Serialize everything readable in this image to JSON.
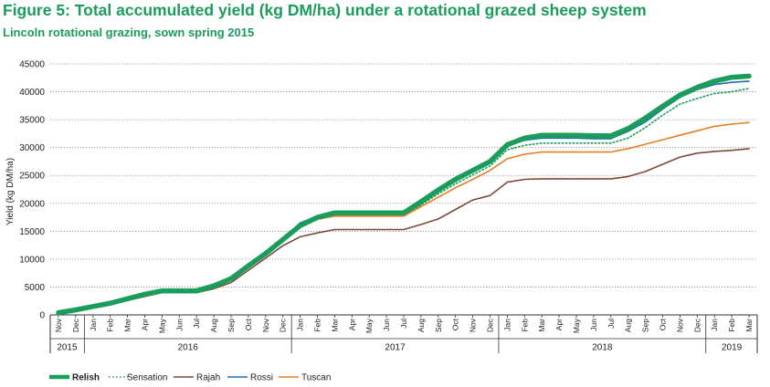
{
  "title": "Figure 5: Total accumulated yield (kg DM/ha) under a rotational grazed sheep system",
  "subtitle": "Lincoln rotational grazing, sown spring 2015",
  "chart_data": {
    "type": "line",
    "title": "Figure 5: Total accumulated yield (kg DM/ha) under a rotational grazed sheep system",
    "subtitle": "Lincoln rotational grazing, sown spring 2015",
    "ylabel": "Yield (kg DM/ha)",
    "xlabel": "",
    "ylim": [
      0,
      45000
    ],
    "yticks": [
      0,
      5000,
      10000,
      15000,
      20000,
      25000,
      30000,
      35000,
      40000,
      45000
    ],
    "grid": "horizontal dotted",
    "legend_position": "bottom-left",
    "x": [
      "Nov 2015",
      "Dec 2015",
      "Jan 2016",
      "Feb 2016",
      "Mar 2016",
      "Apr 2016",
      "May 2016",
      "Jun 2016",
      "Jul 2016",
      "Aug 2016",
      "Sep 2016",
      "Oct 2016",
      "Nov 2016",
      "Dec 2016",
      "Jan 2017",
      "Feb 2017",
      "Mar 2017",
      "Apr 2017",
      "May 2017",
      "Jun 2017",
      "Jul 2017",
      "Aug 2017",
      "Sep 2017",
      "Oct 2017",
      "Nov 2017",
      "Dec 2017",
      "Jan 2018",
      "Feb 2018",
      "Mar 2018",
      "Apr 2018",
      "May 2018",
      "Jun 2018",
      "Jul 2018",
      "Aug 2018",
      "Sep 2018",
      "Oct 2018",
      "Nov 2018",
      "Dec 2018",
      "Jan 2019",
      "Feb 2019",
      "Mar 2019"
    ],
    "month_labels": [
      "Nov",
      "Dec",
      "Jan",
      "Feb",
      "Mar",
      "Apr",
      "May",
      "Jun",
      "Jul",
      "Aug",
      "Sep",
      "Oct",
      "Nov",
      "Dec",
      "Jan",
      "Feb",
      "Mar",
      "Apr",
      "May",
      "Jun",
      "Jul",
      "Aug",
      "Sep",
      "Oct",
      "Nov",
      "Dec",
      "Jan",
      "Feb",
      "Mar",
      "Apr",
      "May",
      "Jun",
      "Jul",
      "Aug",
      "Sep",
      "Oct",
      "Nov",
      "Dec",
      "Jan",
      "Feb",
      "Mar"
    ],
    "years": [
      {
        "label": "2015",
        "start": 0,
        "end": 1
      },
      {
        "label": "2016",
        "start": 2,
        "end": 13
      },
      {
        "label": "2017",
        "start": 14,
        "end": 25
      },
      {
        "label": "2018",
        "start": 26,
        "end": 37
      },
      {
        "label": "2019",
        "start": 38,
        "end": 40
      }
    ],
    "series": [
      {
        "name": "Relish",
        "color": "#1a9c5b",
        "style": "solid",
        "width": 5.5,
        "values": [
          400,
          900,
          1500,
          2100,
          2900,
          3700,
          4300,
          4300,
          4300,
          5200,
          6500,
          8800,
          11000,
          13500,
          16000,
          17500,
          18300,
          18300,
          18300,
          18300,
          18300,
          20300,
          22400,
          24300,
          25900,
          27500,
          30500,
          31700,
          32200,
          32200,
          32200,
          32100,
          32100,
          33400,
          35300,
          37400,
          39400,
          40800,
          41900,
          42600,
          42800
        ]
      },
      {
        "name": "Sensation",
        "color": "#1a9c5b",
        "style": "dotted",
        "width": 1.6,
        "values": [
          400,
          900,
          1400,
          2000,
          2700,
          3500,
          4200,
          4200,
          4200,
          5100,
          6300,
          8600,
          10800,
          13200,
          15700,
          17100,
          17800,
          17800,
          17800,
          17800,
          17800,
          19700,
          21700,
          23500,
          25100,
          26700,
          29600,
          30400,
          30800,
          30800,
          30800,
          30800,
          30800,
          31700,
          33600,
          35800,
          37800,
          38800,
          39700,
          40000,
          40600
        ]
      },
      {
        "name": "Rajah",
        "color": "#7a4a3a",
        "style": "solid",
        "width": 1.6,
        "values": [
          300,
          800,
          1300,
          1800,
          2600,
          3300,
          4000,
          4000,
          4000,
          4700,
          5800,
          8000,
          10200,
          12400,
          14000,
          14700,
          15300,
          15300,
          15300,
          15300,
          15300,
          16200,
          17200,
          18900,
          20600,
          21400,
          23800,
          24300,
          24400,
          24400,
          24400,
          24400,
          24400,
          24800,
          25700,
          27000,
          28300,
          29000,
          29300,
          29500,
          29800
        ]
      },
      {
        "name": "Rossi",
        "color": "#1f6fa8",
        "style": "solid",
        "width": 1.6,
        "values": [
          400,
          900,
          1500,
          2100,
          2900,
          3700,
          4300,
          4300,
          4300,
          5200,
          6500,
          8800,
          11000,
          13700,
          16500,
          17700,
          18300,
          18300,
          18300,
          18300,
          18300,
          20300,
          22400,
          24300,
          25900,
          27500,
          30300,
          31300,
          31700,
          31700,
          31700,
          31600,
          31600,
          32900,
          34600,
          36900,
          39000,
          40400,
          41300,
          41700,
          41900
        ]
      },
      {
        "name": "Tuscan",
        "color": "#e67e22",
        "style": "solid",
        "width": 1.6,
        "values": [
          400,
          900,
          1400,
          2000,
          2800,
          3600,
          4200,
          4200,
          4200,
          5100,
          6400,
          8600,
          10700,
          13300,
          15900,
          17200,
          17700,
          17700,
          17700,
          17700,
          17700,
          19400,
          21100,
          22800,
          24300,
          25900,
          28000,
          28800,
          29200,
          29200,
          29200,
          29200,
          29200,
          29800,
          30600,
          31400,
          32200,
          33000,
          33800,
          34200,
          34500
        ]
      }
    ]
  }
}
